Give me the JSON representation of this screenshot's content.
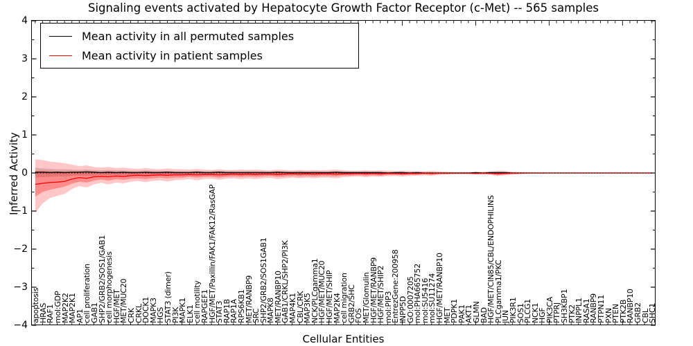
{
  "title": "Signaling events activated by Hepatocyte Growth Factor Receptor (c-Met) -- 565 samples",
  "legend": {
    "items": [
      {
        "label": "Mean activity in all permuted samples",
        "color": "#000000"
      },
      {
        "label": "Mean activity in patient samples",
        "color": "#ff0000"
      }
    ]
  },
  "colors": {
    "permuted_line": "#000000",
    "patient_line": "#ff0000",
    "patient_band": "rgba(255,0,0,0.22)",
    "patient_band_inner": "rgba(255,0,0,0.30)",
    "permuted_band": "rgba(0,0,0,0.16)",
    "zero_line": "#000000"
  },
  "chart_data": {
    "type": "line",
    "title": "Signaling events activated by Hepatocyte Growth Factor Receptor (c-Met) -- 565 samples",
    "xlabel": "Cellular Entities",
    "ylabel": "Inferred Activity",
    "ylim": [
      -4,
      4
    ],
    "ytick_labels": [
      "−4",
      "−3",
      "−2",
      "−1",
      "0",
      "1",
      "2",
      "3",
      "4"
    ],
    "ytick_values": [
      -4,
      -3,
      -2,
      -1,
      0,
      1,
      2,
      3,
      4
    ],
    "grid": false,
    "legend_position": "upper left",
    "zero_line": "dotted",
    "categories": [
      "apoptosis",
      "HRAS",
      "RAF1",
      "mol:GDP",
      "MAP2K2",
      "MAP2K1",
      "AP1",
      "cell proliferation",
      "GAB1",
      "SHP2/GRB2/SOS1/GAB1",
      "cell morphogenesis",
      "HGF/MET",
      "MET/MUC20",
      "CRK",
      "CRKL",
      "DOCK1",
      "MAPK3",
      "HGS",
      "STAT3 (dimer)",
      "PI3K",
      "MAPK1",
      "ELK1",
      "cell motility",
      "RAPGEF1",
      "HGF/MET/Paxillin/FAK1/FAK12/RasGAP",
      "STAT3",
      "RAP1B",
      "RAP1A",
      "RPS6KB1",
      "MET/RANBP9",
      "SRC",
      "SHP2/GRB2/SOS1GAB1",
      "MAPK8",
      "MET/RANBP10",
      "GAB1/CRKL/SHP2/PI3K",
      "MAP4K1",
      "CBL/CRK",
      "MAP3K5",
      "NCK/PLCgamma1",
      "HGF/MET/MUC20",
      "HGF/MET/SHIP",
      "MAP2K4",
      "cell migration",
      "GRB2/SHC",
      "FOS",
      "MET/Glomulin",
      "HGF/MET/RANBP9",
      "HGF/MET/SHIP2",
      "mol:PIP3",
      "EntrezGene:200958",
      "INPP5D",
      "GO:0007205",
      "mol:PHA665752",
      "mol:SU5416",
      "mol:SU11274",
      "HGF/MET/RANBP10",
      "MET",
      "PDPK1",
      "PAK1",
      "AKT1",
      "GLMN",
      "BAD",
      "HGF/MET/CIN85/CBL/ENDOPHILINS",
      "PLCgamma1/PKC",
      "JUN",
      "PIK3R1",
      "SOS1",
      "PLCG1",
      "NCK1",
      "HGF",
      "PIK3CA",
      "PTPRJ",
      "SH3KBP1",
      "PTK2",
      "INPPL1",
      "RASA1",
      "RANBP9",
      "PTPN11",
      "PXN",
      "PTEN",
      "PTK2B",
      "RANBP10",
      "GRB2",
      "CBL",
      "SHC1"
    ],
    "series": [
      {
        "name": "Mean activity in all permuted samples",
        "color": "#000000",
        "values": [
          0.02,
          0.02,
          0.01,
          0.02,
          0.01,
          0.02,
          0.02,
          0.03,
          0.02,
          0.01,
          0.02,
          0.01,
          0.02,
          0.01,
          0.01,
          0.02,
          0.01,
          0.01,
          0.02,
          0.01,
          0.01,
          0.01,
          0.02,
          0.01,
          0.01,
          0.02,
          0.01,
          0.01,
          0.01,
          0.01,
          0.01,
          0.01,
          0.01,
          0.02,
          0.01,
          0.01,
          0.01,
          0.01,
          0.01,
          0.01,
          0.01,
          0.02,
          0.01,
          0.01,
          0.01,
          0.01,
          0.01,
          0.01,
          0,
          0.01,
          0.01,
          0,
          0.01,
          0,
          0,
          0,
          0,
          0,
          0,
          0,
          0.01,
          0,
          0.01,
          0.01,
          0.01,
          0,
          0,
          0,
          0,
          0,
          0,
          0,
          0,
          0,
          0,
          0,
          0,
          0,
          0,
          0,
          0,
          0,
          0,
          0,
          0
        ]
      },
      {
        "name": "Mean activity in patient samples",
        "color": "#ff0000",
        "values": [
          -0.3,
          -0.27,
          -0.25,
          -0.24,
          -0.22,
          -0.16,
          -0.12,
          -0.14,
          -0.1,
          -0.09,
          -0.1,
          -0.08,
          -0.09,
          -0.07,
          -0.06,
          -0.07,
          -0.06,
          -0.05,
          -0.06,
          -0.05,
          -0.05,
          -0.04,
          -0.05,
          -0.04,
          -0.04,
          -0.05,
          -0.04,
          -0.03,
          -0.04,
          -0.03,
          -0.04,
          -0.03,
          -0.03,
          -0.04,
          -0.03,
          -0.02,
          -0.03,
          -0.02,
          -0.03,
          -0.02,
          -0.02,
          -0.03,
          -0.02,
          -0.02,
          -0.01,
          -0.02,
          -0.01,
          -0.02,
          -0.01,
          -0.01,
          -0.02,
          -0.01,
          -0.01,
          0,
          -0.01,
          0,
          0,
          0,
          0,
          0,
          -0.01,
          0,
          -0.01,
          -0.02,
          -0.01,
          0,
          0,
          0,
          0,
          0,
          0,
          0,
          0,
          0,
          0,
          0,
          0,
          0,
          0,
          0,
          0,
          0,
          0,
          0,
          0
        ]
      }
    ],
    "bands": [
      {
        "name": "permuted-std-band",
        "color": "rgba(0,0,0,0.16)",
        "upper": [
          0.14,
          0.12,
          0.11,
          0.1,
          0.1,
          0.09,
          0.08,
          0.09,
          0.08,
          0.07,
          0.08,
          0.07,
          0.07,
          0.06,
          0.06,
          0.07,
          0.06,
          0.06,
          0.06,
          0.05,
          0.05,
          0.05,
          0.06,
          0.05,
          0.05,
          0.06,
          0.05,
          0.05,
          0.05,
          0.05,
          0.05,
          0.05,
          0.04,
          0.05,
          0.05,
          0.04,
          0.05,
          0.04,
          0.05,
          0.04,
          0.04,
          0.05,
          0.04,
          0.04,
          0.04,
          0.04,
          0.04,
          0.04,
          0.03,
          0.03,
          0.04,
          0.03,
          0.03,
          0.03,
          0.03,
          0.02,
          0.02,
          0.02,
          0.02,
          0.02,
          0.02,
          0.02,
          0.03,
          0.03,
          0.03,
          0.02,
          0.02,
          0.01,
          0.01,
          0.01,
          0.01,
          0.01,
          0.01,
          0.01,
          0.01,
          0.01,
          0.01,
          0.01,
          0.01,
          0.01,
          0.01,
          0.01,
          0.01,
          0.01,
          0.01
        ],
        "lower": [
          -0.12,
          -0.11,
          -0.1,
          -0.09,
          -0.09,
          -0.08,
          -0.07,
          -0.08,
          -0.07,
          -0.06,
          -0.07,
          -0.06,
          -0.06,
          -0.06,
          -0.05,
          -0.06,
          -0.05,
          -0.05,
          -0.06,
          -0.05,
          -0.05,
          -0.04,
          -0.05,
          -0.04,
          -0.04,
          -0.05,
          -0.04,
          -0.04,
          -0.05,
          -0.04,
          -0.05,
          -0.04,
          -0.04,
          -0.05,
          -0.04,
          -0.04,
          -0.04,
          -0.04,
          -0.04,
          -0.04,
          -0.04,
          -0.05,
          -0.04,
          -0.03,
          -0.03,
          -0.04,
          -0.03,
          -0.04,
          -0.03,
          -0.03,
          -0.03,
          -0.03,
          -0.03,
          -0.02,
          -0.03,
          -0.02,
          -0.02,
          -0.02,
          -0.02,
          -0.02,
          -0.02,
          -0.02,
          -0.02,
          -0.03,
          -0.02,
          -0.02,
          -0.01,
          -0.01,
          -0.01,
          -0.01,
          -0.01,
          -0.01,
          -0.01,
          -0.01,
          -0.01,
          -0.01,
          -0.01,
          -0.01,
          -0.01,
          -0.01,
          -0.01,
          -0.01,
          -0.01,
          -0.01,
          -0.01
        ]
      },
      {
        "name": "patient-outer-band",
        "color": "rgba(255,0,0,0.22)",
        "upper": [
          0.36,
          0.34,
          0.3,
          0.28,
          0.26,
          0.22,
          0.18,
          0.2,
          0.16,
          0.14,
          0.16,
          0.13,
          0.14,
          0.12,
          0.11,
          0.13,
          0.11,
          0.1,
          0.12,
          0.1,
          0.1,
          0.09,
          0.11,
          0.09,
          0.08,
          0.1,
          0.08,
          0.08,
          0.09,
          0.08,
          0.09,
          0.08,
          0.07,
          0.09,
          0.08,
          0.07,
          0.08,
          0.07,
          0.08,
          0.07,
          0.08,
          0.09,
          0.07,
          0.06,
          0.06,
          0.07,
          0.06,
          0.07,
          0.06,
          0.05,
          0.06,
          0.05,
          0.05,
          0.04,
          0.05,
          0.04,
          0.03,
          0.02,
          0.02,
          0.02,
          0.03,
          0.03,
          0.04,
          0.06,
          0.05,
          0.03,
          0.02,
          0.02,
          0.01,
          0.01,
          0.01,
          0.01,
          0.01,
          0.01,
          0.01,
          0.01,
          0.01,
          0.01,
          0.01,
          0.01,
          0.01,
          0.01,
          0.01,
          0.01,
          0.01
        ],
        "lower": [
          -1.05,
          -0.8,
          -0.66,
          -0.6,
          -0.55,
          -0.42,
          -0.34,
          -0.38,
          -0.3,
          -0.26,
          -0.3,
          -0.25,
          -0.27,
          -0.23,
          -0.21,
          -0.24,
          -0.21,
          -0.19,
          -0.22,
          -0.19,
          -0.18,
          -0.16,
          -0.19,
          -0.16,
          -0.15,
          -0.18,
          -0.15,
          -0.14,
          -0.16,
          -0.14,
          -0.16,
          -0.14,
          -0.13,
          -0.16,
          -0.14,
          -0.12,
          -0.14,
          -0.12,
          -0.14,
          -0.12,
          -0.12,
          -0.14,
          -0.11,
          -0.1,
          -0.09,
          -0.11,
          -0.09,
          -0.1,
          -0.08,
          -0.08,
          -0.09,
          -0.07,
          -0.07,
          -0.06,
          -0.07,
          -0.05,
          -0.04,
          -0.03,
          -0.03,
          -0.03,
          -0.04,
          -0.04,
          -0.05,
          -0.08,
          -0.06,
          -0.04,
          -0.03,
          -0.02,
          -0.02,
          -0.02,
          -0.01,
          -0.01,
          -0.01,
          -0.01,
          -0.01,
          -0.01,
          -0.01,
          -0.01,
          -0.01,
          -0.01,
          -0.01,
          -0.01,
          -0.01,
          -0.01,
          -0.01
        ]
      },
      {
        "name": "patient-inner-band",
        "color": "rgba(255,0,0,0.30)",
        "upper": [
          0.05,
          0.06,
          0.05,
          0.04,
          0.04,
          0.04,
          0.04,
          0.04,
          0.04,
          0.03,
          0.04,
          0.03,
          0.03,
          0.03,
          0.03,
          0.03,
          0.03,
          0.03,
          0.03,
          0.03,
          0.03,
          0.02,
          0.03,
          0.02,
          0.02,
          0.03,
          0.02,
          0.02,
          0.02,
          0.02,
          0.03,
          0.02,
          0.02,
          0.03,
          0.02,
          0.02,
          0.02,
          0.02,
          0.02,
          0.02,
          0.02,
          0.03,
          0.02,
          0.02,
          0.02,
          0.02,
          0.02,
          0.02,
          0.02,
          0.01,
          0.02,
          0.01,
          0.01,
          0.01,
          0.01,
          0.01,
          0.01,
          0.01,
          0.01,
          0.01,
          0.01,
          0.01,
          0.01,
          0.02,
          0.01,
          0.01,
          0.01,
          0.01,
          0,
          0,
          0,
          0,
          0,
          0,
          0,
          0,
          0,
          0,
          0,
          0,
          0,
          0,
          0,
          0,
          0
        ],
        "lower": [
          -0.62,
          -0.5,
          -0.44,
          -0.4,
          -0.36,
          -0.28,
          -0.23,
          -0.25,
          -0.2,
          -0.17,
          -0.2,
          -0.16,
          -0.18,
          -0.15,
          -0.14,
          -0.16,
          -0.14,
          -0.12,
          -0.14,
          -0.12,
          -0.12,
          -0.1,
          -0.12,
          -0.1,
          -0.1,
          -0.12,
          -0.1,
          -0.09,
          -0.1,
          -0.09,
          -0.1,
          -0.09,
          -0.08,
          -0.1,
          -0.09,
          -0.08,
          -0.09,
          -0.08,
          -0.09,
          -0.08,
          -0.08,
          -0.09,
          -0.07,
          -0.07,
          -0.06,
          -0.07,
          -0.06,
          -0.07,
          -0.05,
          -0.05,
          -0.06,
          -0.05,
          -0.05,
          -0.04,
          -0.05,
          -0.03,
          -0.03,
          -0.02,
          -0.02,
          -0.02,
          -0.03,
          -0.03,
          -0.03,
          -0.05,
          -0.04,
          -0.03,
          -0.02,
          -0.01,
          -0.01,
          -0.01,
          -0.01,
          -0.01,
          -0.01,
          -0.01,
          -0.01,
          -0.01,
          -0.01,
          -0.01,
          -0.01,
          -0.01,
          -0.01,
          -0.01,
          -0.01,
          -0.01,
          -0.01
        ]
      }
    ]
  }
}
